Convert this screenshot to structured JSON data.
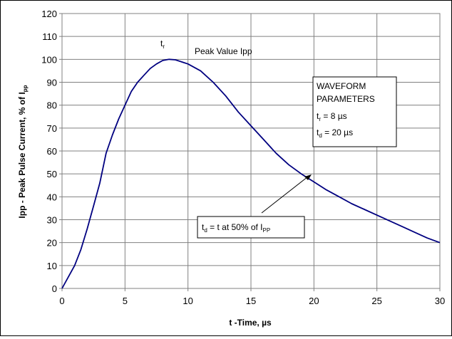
{
  "chart_data": {
    "type": "line",
    "xlabel": "t -Time, µs",
    "ylabel_main": "Ipp - Peak Pulse Current, % of I",
    "ylabel_sub": "pp",
    "xlim": [
      0,
      30
    ],
    "ylim": [
      0,
      120
    ],
    "x_ticks": [
      "0",
      "5",
      "10",
      "15",
      "20",
      "25",
      "30"
    ],
    "y_ticks": [
      "0",
      "10",
      "20",
      "30",
      "40",
      "50",
      "60",
      "70",
      "80",
      "90",
      "100",
      "110",
      "120"
    ],
    "grid": true,
    "series": [
      {
        "color": "#000080",
        "x": [
          0,
          1,
          1.5,
          2,
          2.5,
          3,
          3.5,
          4,
          4.5,
          5,
          5.5,
          6,
          6.5,
          7,
          7.5,
          8,
          8.5,
          9,
          10,
          11,
          12,
          13,
          14,
          15,
          16,
          17,
          18,
          19,
          20,
          21,
          22,
          23,
          24,
          25,
          26,
          27,
          28,
          29,
          30
        ],
        "y": [
          0,
          10,
          17,
          26,
          36,
          46,
          59,
          67,
          74,
          80,
          86,
          90,
          93,
          96,
          98,
          99.5,
          100,
          99.8,
          98,
          95,
          90,
          84,
          77,
          71,
          65,
          59,
          54,
          50,
          46.5,
          43,
          40,
          37,
          34.5,
          32,
          29.5,
          27,
          24.5,
          22,
          20
        ]
      }
    ],
    "annotations": {
      "tr_label": "t",
      "tr_sub": "r",
      "peak_label": "Peak Value Ipp",
      "params_title_line1": "WAVEFORM",
      "params_title_line2": "PARAMETERS",
      "param_tr_t": "t",
      "param_tr_sub": "r",
      "param_tr_value": " = 8 µs",
      "param_td_t": "t",
      "param_td_sub": "d",
      "param_td_value": " = 20 µs",
      "td_label_t": "t",
      "td_label_sub": "d",
      "td_label_mid": " = t at 50% of I",
      "td_label_sub2": "PP"
    }
  }
}
